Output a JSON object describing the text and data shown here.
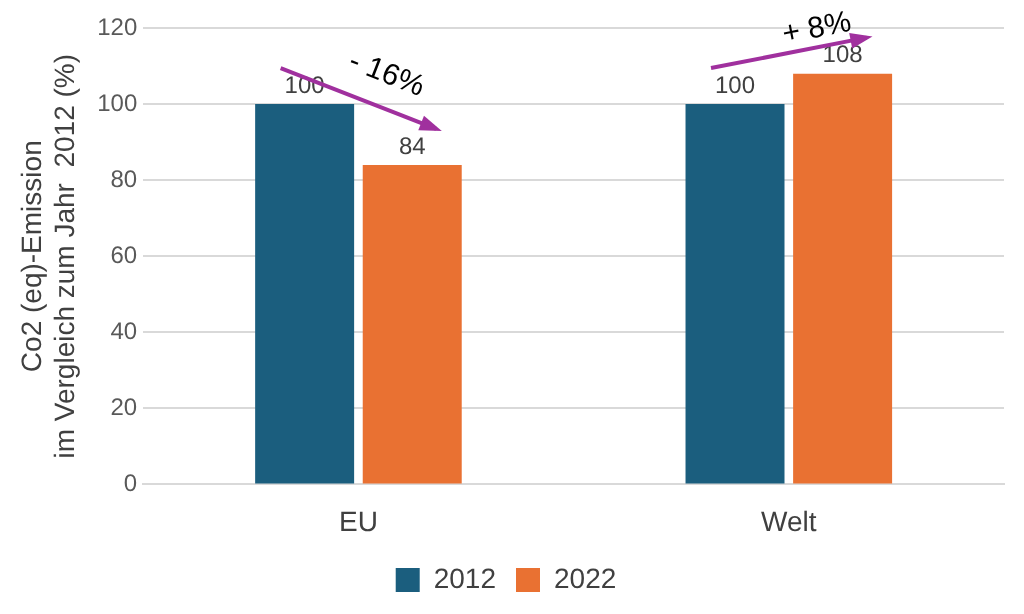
{
  "chart_data": {
    "type": "bar",
    "ylabel": "Co2 (eq)-Emission\nim Vergleich zum Jahr  2012 (%)",
    "categories": [
      "EU",
      "Welt"
    ],
    "series": [
      {
        "name": "2012",
        "color": "#1b5e7e",
        "values": [
          100,
          100
        ]
      },
      {
        "name": "2022",
        "color": "#e97132",
        "values": [
          84,
          108
        ]
      }
    ],
    "ylim": [
      0,
      120
    ],
    "yticks": [
      0,
      20,
      40,
      60,
      80,
      100,
      120
    ],
    "grid": "y",
    "legend": "bottom",
    "data_labels": true,
    "annotations": [
      "- 16%",
      "+ 8%"
    ]
  }
}
